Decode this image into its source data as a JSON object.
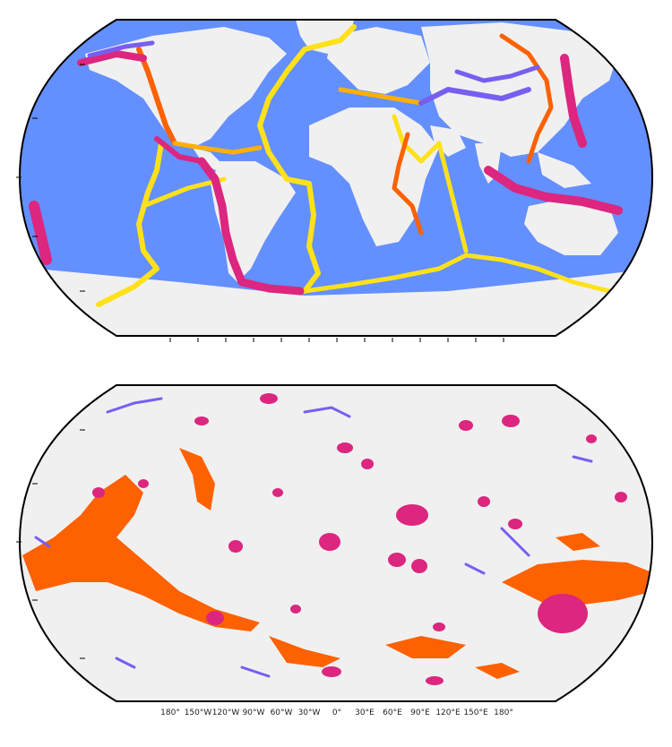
{
  "maps": [
    {
      "id": "tectonic-boundaries",
      "projection": "robinson",
      "ocean_color": "#648FFF",
      "land_color": "#F0F0F0",
      "boundary_colors": [
        "#FFE119",
        "#FE6100",
        "#FFB000",
        "#DC267F",
        "#785EF0"
      ]
    },
    {
      "id": "seafloor-features",
      "projection": "robinson",
      "background_color": "#F0F0F0",
      "feature_colors": [
        "#FE6100",
        "#DC267F",
        "#785EF0"
      ]
    }
  ],
  "bottom_axis": {
    "tick_labels": [
      "180°",
      "150°W",
      "120°W",
      "90°W",
      "60°W",
      "30°W",
      "0°",
      "30°E",
      "60°E",
      "90°E",
      "120°E",
      "150°E",
      "180°"
    ]
  }
}
